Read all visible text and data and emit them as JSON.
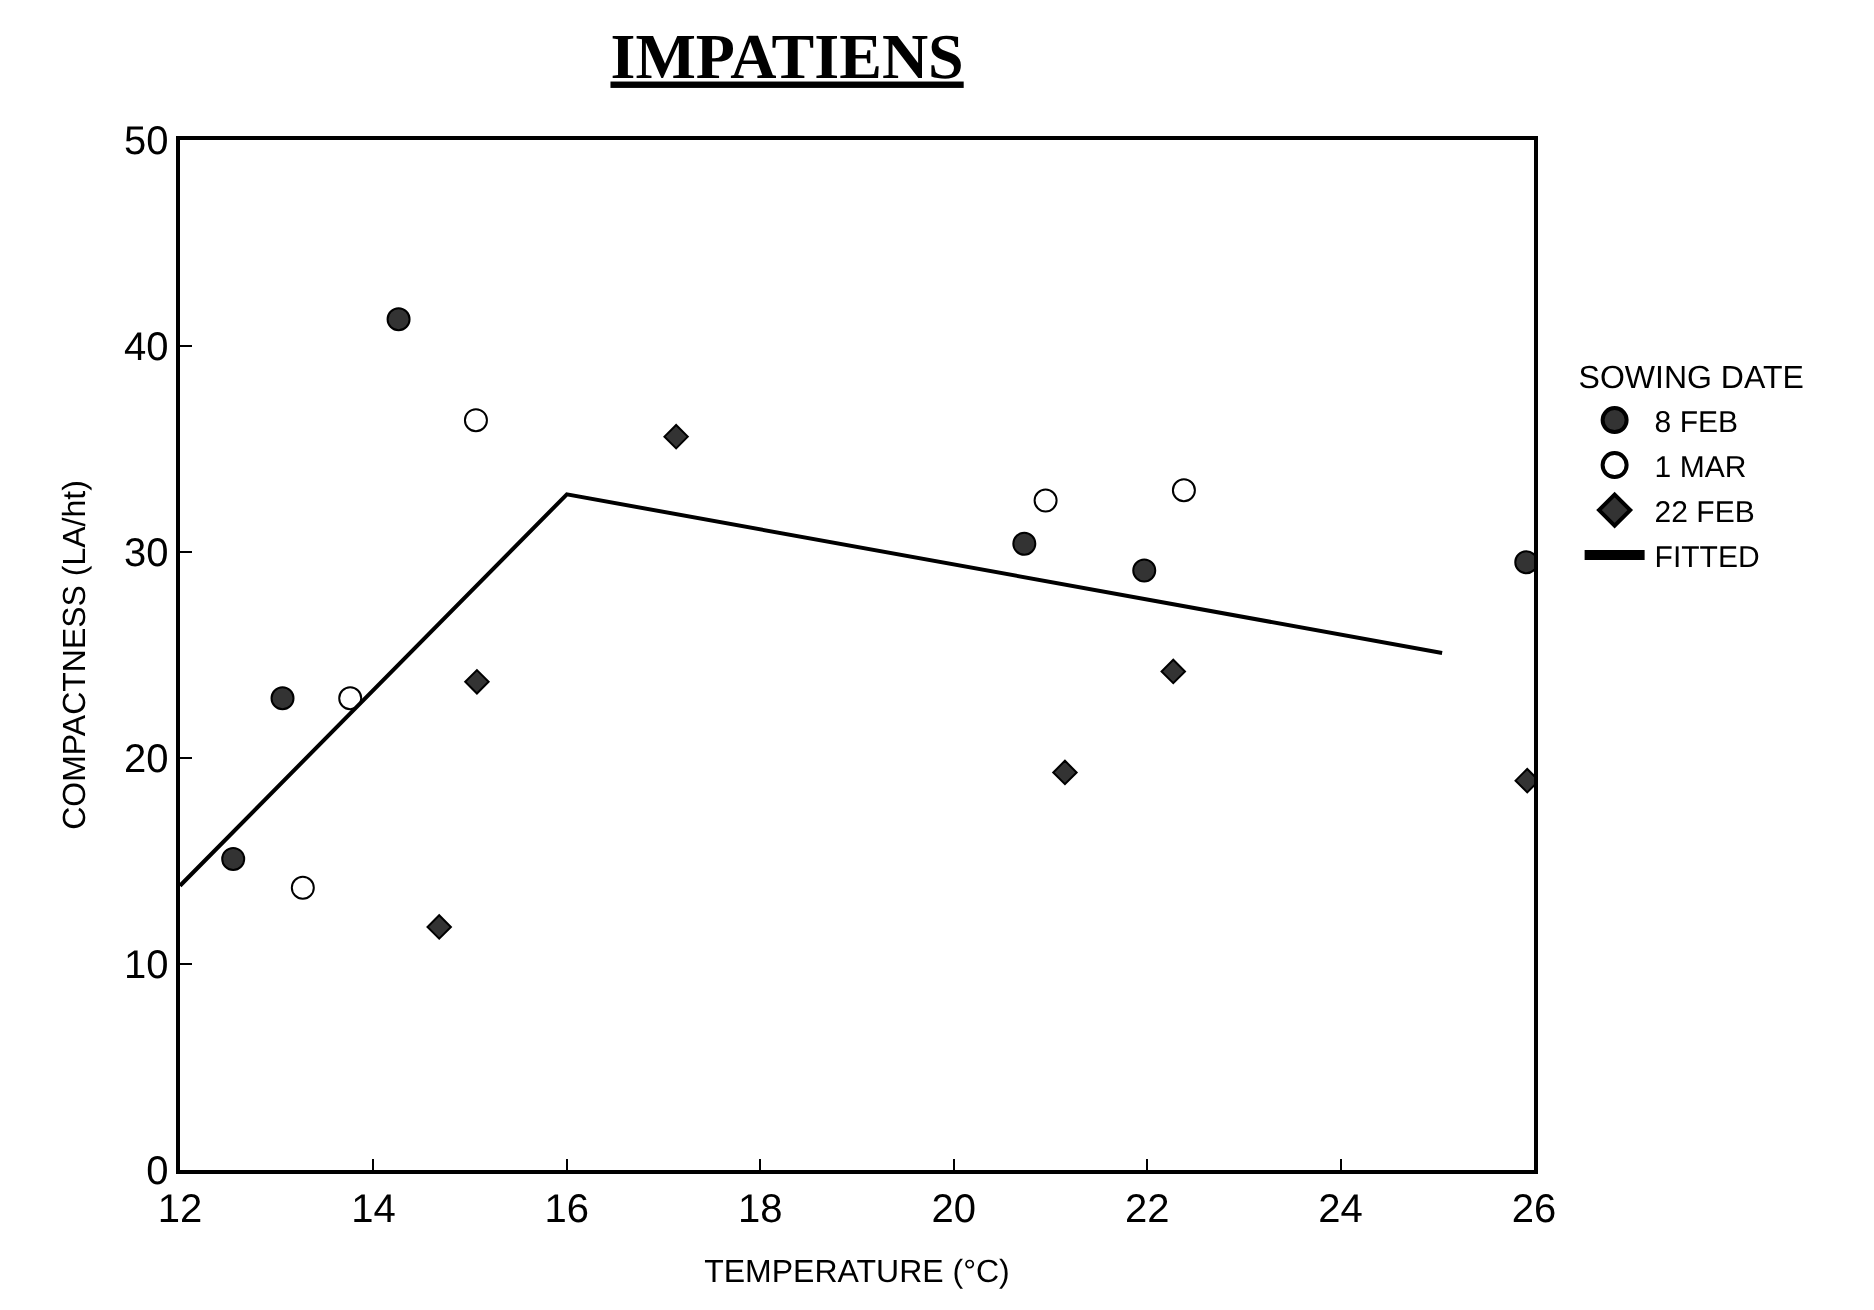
{
  "chart_data": {
    "type": "scatter",
    "title": "IMPATIENS",
    "xlabel": "TEMPERATURE (°C)",
    "ylabel": "COMPACTNESS (LA/ht)",
    "legend_title": "SOWING DATE",
    "series": [
      {
        "name": "8 FEB",
        "marker": "circle",
        "color": "#333333",
        "x": [
          12.55,
          13.06,
          14.26,
          20.73,
          21.97,
          25.92
        ],
        "values": [
          15.1,
          22.9,
          41.3,
          30.4,
          29.1,
          29.5
        ]
      },
      {
        "name": "1 MAR",
        "marker": "circle",
        "color": "#ffffff",
        "x": [
          13.27,
          13.76,
          15.06,
          20.95,
          22.38
        ],
        "values": [
          13.7,
          22.9,
          36.4,
          32.5,
          33.0
        ]
      },
      {
        "name": "22 FEB",
        "marker": "diamond",
        "color": "#333333",
        "x": [
          14.68,
          15.07,
          17.13,
          21.15,
          22.27,
          25.93
        ],
        "values": [
          11.8,
          23.7,
          35.6,
          19.3,
          24.2,
          18.9
        ]
      },
      {
        "name": "FITTED",
        "type": "line",
        "marker": "none",
        "line_style": "solid",
        "color": "#000000",
        "x": [
          12,
          16,
          25.05
        ],
        "values": [
          13.8,
          32.8,
          25.1
        ]
      }
    ],
    "xlim": [
      12,
      26
    ],
    "xticks": [
      12,
      14,
      16,
      18,
      20,
      22,
      24,
      26
    ],
    "ylim": [
      0,
      50
    ],
    "yticks": [
      0,
      10,
      20,
      30,
      40,
      50
    ],
    "legend": "right"
  }
}
